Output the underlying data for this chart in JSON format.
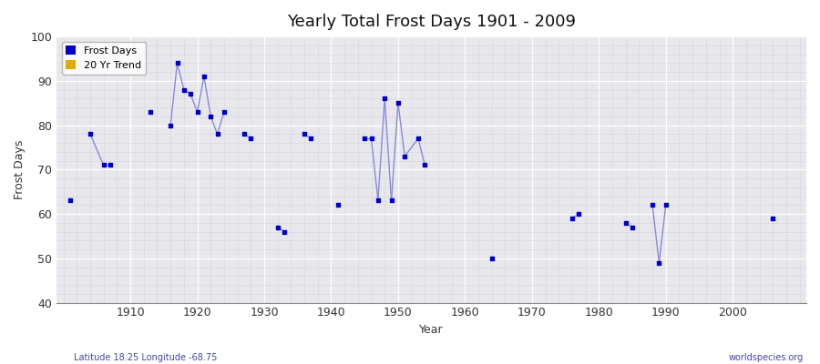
{
  "title": "Yearly Total Frost Days 1901 - 2009",
  "ylabel": "Frost Days",
  "xlabel": "Year",
  "subtitle_left": "Latitude 18.25 Longitude -68.75",
  "subtitle_right": "worldspecies.org",
  "ylim": [
    40,
    100
  ],
  "xlim": [
    1899,
    2011
  ],
  "fig_background_color": "#ffffff",
  "plot_background_color": "#e8e8ec",
  "line_color": "#8888dd",
  "marker_color": "#0000cc",
  "trend_color": "#ddaa00",
  "frost_days": {
    "years": [
      1901,
      1904,
      1906,
      1907,
      1913,
      1916,
      1917,
      1918,
      1919,
      1920,
      1921,
      1922,
      1923,
      1924,
      1927,
      1928,
      1932,
      1933,
      1936,
      1937,
      1941,
      1945,
      1946,
      1947,
      1948,
      1949,
      1950,
      1951,
      1953,
      1954,
      1964,
      1976,
      1977,
      1984,
      1985,
      1988,
      1989,
      1990,
      2006
    ],
    "values": [
      63,
      78,
      71,
      71,
      83,
      80,
      94,
      88,
      87,
      83,
      91,
      82,
      78,
      83,
      78,
      77,
      57,
      56,
      78,
      77,
      62,
      77,
      77,
      63,
      86,
      63,
      85,
      73,
      77,
      71,
      50,
      59,
      60,
      58,
      57,
      62,
      49,
      62,
      59
    ]
  },
  "connect_threshold": 2,
  "xticks": [
    1910,
    1920,
    1930,
    1940,
    1950,
    1960,
    1970,
    1980,
    1990,
    2000
  ],
  "yticks": [
    40,
    50,
    60,
    70,
    80,
    90,
    100
  ],
  "major_grid_color": "#ffffff",
  "minor_grid_color": "#ccccdd",
  "title_fontsize": 13
}
